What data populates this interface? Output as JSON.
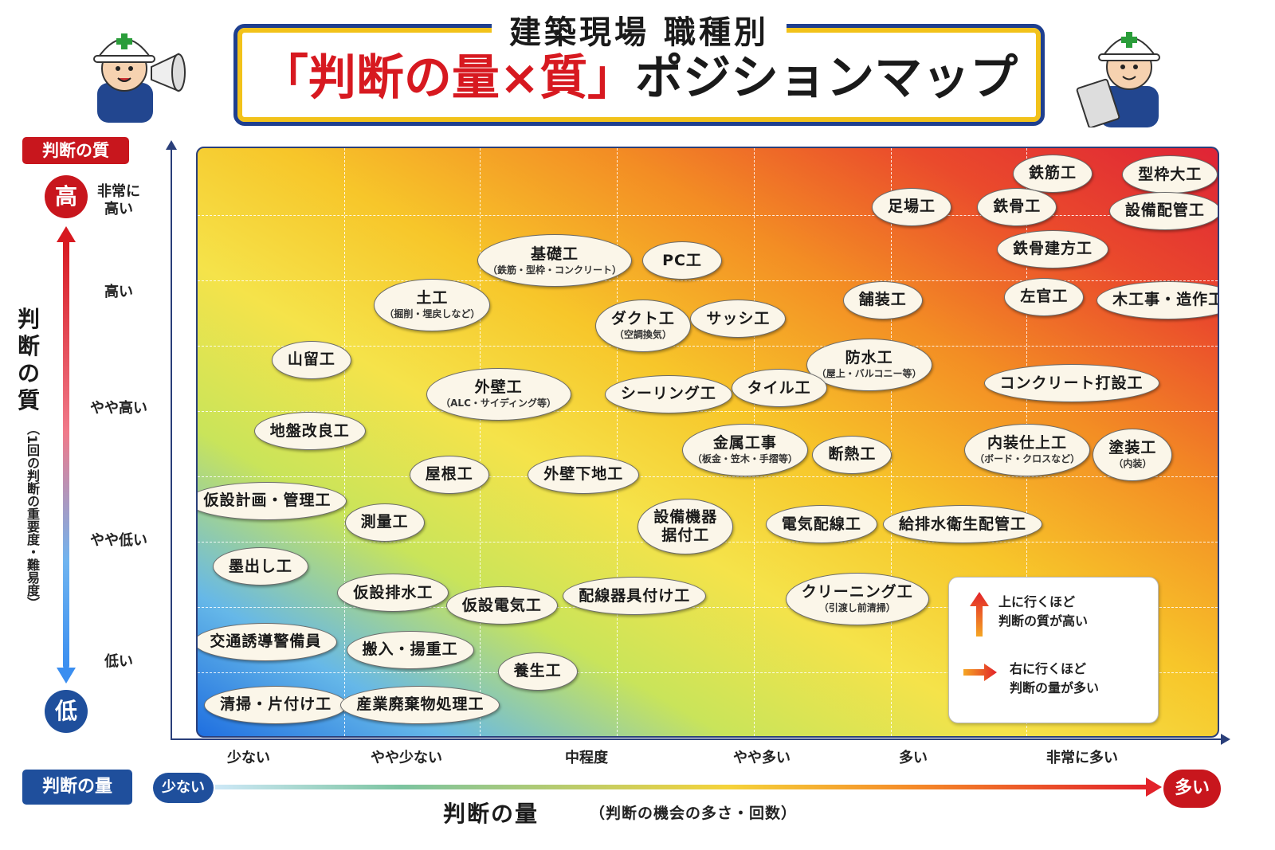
{
  "title": {
    "subtitle": "建築現場 職種別",
    "main_red": "「判断の量×質」",
    "main_black": "ポジションマップ"
  },
  "colors": {
    "title_red": "#d71920",
    "navy": "#1f4f9c",
    "badge_red": "#c8161d"
  },
  "y_axis": {
    "badge": "判断の質",
    "high": "高",
    "low": "低",
    "title_chars": [
      "判",
      "断",
      "の",
      "質"
    ],
    "title_note": "（1回の判断の重要度・難易度）",
    "levels": [
      "非常に\n高い",
      "高い",
      "やや高い",
      "やや低い",
      "低い"
    ]
  },
  "x_axis": {
    "badge": "判断の量",
    "low": "少ない",
    "high": "多い",
    "title": "判断の量",
    "title_note": "（判断の機会の多さ・回数）",
    "levels": [
      "少ない",
      "やや少ない",
      "中程度",
      "やや多い",
      "多い",
      "非常に多い"
    ]
  },
  "legend": {
    "up_text": [
      "上に行くほど",
      "判断の質が高い"
    ],
    "right_text": [
      "右に行くほど",
      "判断の量が多い"
    ]
  },
  "chart_data": {
    "type": "scatter",
    "title": "建築現場 職種別「判断の量×質」ポジションマップ",
    "xlabel": "判断の量（判断の機会の多さ・回数）",
    "ylabel": "判断の質（1回の判断の重要度・難易度）",
    "xlim": [
      0,
      6
    ],
    "ylim": [
      0,
      6
    ],
    "x_ticks": [
      "少ない",
      "やや少ない",
      "中程度",
      "やや多い",
      "多い",
      "非常に多い"
    ],
    "y_ticks": [
      "低い",
      "やや低い",
      "やや高い",
      "高い",
      "非常に高い"
    ],
    "points": [
      {
        "label": "鉄筋工",
        "x": 5.03,
        "y": 5.74
      },
      {
        "label": "型枠大工",
        "x": 5.72,
        "y": 5.73
      },
      {
        "label": "足場工",
        "x": 4.2,
        "y": 5.4
      },
      {
        "label": "鉄骨工",
        "x": 4.82,
        "y": 5.4
      },
      {
        "label": "設備配管工",
        "x": 5.69,
        "y": 5.36
      },
      {
        "label": "鉄骨建方工",
        "x": 5.03,
        "y": 4.97
      },
      {
        "label": "基礎工",
        "note": "（鉄筋・型枠・コンクリート）",
        "x": 2.1,
        "y": 4.85
      },
      {
        "label": "PC工",
        "x": 2.85,
        "y": 4.85
      },
      {
        "label": "土工",
        "note": "（掘削・埋戻しなど）",
        "x": 1.38,
        "y": 4.4
      },
      {
        "label": "舗装工",
        "x": 4.03,
        "y": 4.45
      },
      {
        "label": "左官工",
        "x": 4.98,
        "y": 4.48
      },
      {
        "label": "木工事・造作工",
        "x": 5.71,
        "y": 4.45
      },
      {
        "label": "ダクト工",
        "note": "（空調換気）",
        "x": 2.62,
        "y": 4.19
      },
      {
        "label": "サッシ工",
        "x": 3.18,
        "y": 4.26
      },
      {
        "label": "山留工",
        "x": 0.67,
        "y": 3.84
      },
      {
        "label": "防水工",
        "note": "（屋上・バルコニー等）",
        "x": 3.95,
        "y": 3.79
      },
      {
        "label": "外壁工",
        "note": "（ALC・サイディング等）",
        "x": 1.77,
        "y": 3.49
      },
      {
        "label": "シーリング工",
        "x": 2.77,
        "y": 3.49
      },
      {
        "label": "タイル工",
        "x": 3.42,
        "y": 3.55
      },
      {
        "label": "コンクリート打設工",
        "x": 5.14,
        "y": 3.6
      },
      {
        "label": "地盤改良工",
        "x": 0.66,
        "y": 3.11
      },
      {
        "label": "金属工事",
        "note": "（板金・笠木・手摺等）",
        "x": 3.22,
        "y": 2.92
      },
      {
        "label": "断熱工",
        "x": 3.85,
        "y": 2.87
      },
      {
        "label": "内装仕上工",
        "note": "（ボード・クロスなど）",
        "x": 4.88,
        "y": 2.92
      },
      {
        "label": "塗装工",
        "note": "（内装）",
        "x": 5.5,
        "y": 2.87
      },
      {
        "label": "屋根工",
        "x": 1.48,
        "y": 2.67
      },
      {
        "label": "外壁下地工",
        "x": 2.27,
        "y": 2.67
      },
      {
        "label": "仮設計画・管理工",
        "x": 0.41,
        "y": 2.4
      },
      {
        "label": "測量工",
        "x": 1.1,
        "y": 2.18
      },
      {
        "label": "設備機器\n据付工",
        "x": 2.87,
        "y": 2.14
      },
      {
        "label": "電気配線工",
        "x": 3.67,
        "y": 2.16
      },
      {
        "label": "給排水衛生配管工",
        "x": 4.5,
        "y": 2.16
      },
      {
        "label": "墨出し工",
        "x": 0.37,
        "y": 1.73
      },
      {
        "label": "仮設排水工",
        "x": 1.15,
        "y": 1.46
      },
      {
        "label": "仮設電気工",
        "x": 1.79,
        "y": 1.33
      },
      {
        "label": "配線器具付け工",
        "x": 2.57,
        "y": 1.43
      },
      {
        "label": "クリーニング工",
        "note": "（引渡し前清掃）",
        "x": 3.88,
        "y": 1.4
      },
      {
        "label": "交通誘導警備員",
        "x": 0.4,
        "y": 0.96
      },
      {
        "label": "搬入・揚重工",
        "x": 1.25,
        "y": 0.88
      },
      {
        "label": "養生工",
        "x": 2.0,
        "y": 0.66
      },
      {
        "label": "清掃・片付け工",
        "x": 0.46,
        "y": 0.32
      },
      {
        "label": "産業廃棄物処理工",
        "x": 1.31,
        "y": 0.32
      }
    ]
  }
}
